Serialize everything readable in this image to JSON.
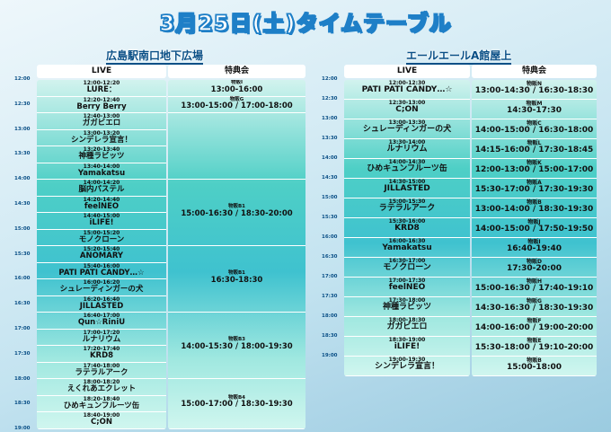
{
  "title": "3月25日(土)タイムテーブル",
  "venue1": {
    "name": "広島駅南口地下広場",
    "live_header": "LIVE",
    "bonus_header": "特典会",
    "times": [
      "12:00",
      "12:30",
      "13:00",
      "13:30",
      "14:00",
      "14:30",
      "15:00",
      "15:30",
      "16:00",
      "16:30",
      "17:00",
      "17:30",
      "18:00",
      "18:30",
      "19:00"
    ],
    "live": [
      {
        "time": "12:00-12:20",
        "name": "LURE："
      },
      {
        "time": "12:20-12:40",
        "name": "Berry Berry"
      },
      {
        "time": "12:40-13:00",
        "name": "ガガビエロ"
      },
      {
        "time": "13:00-13:20",
        "name": "シンデレラ宣言！"
      },
      {
        "time": "13:20-13:40",
        "name": "神種ラビッツ"
      },
      {
        "time": "13:40-14:00",
        "name": "Yamakatsu"
      },
      {
        "time": "14:00-14:20",
        "name": "脳内パステル"
      },
      {
        "time": "14:20-14:40",
        "name": "feelNEO"
      },
      {
        "time": "14:40-15:00",
        "name": "iLIFE!"
      },
      {
        "time": "15:00-15:20",
        "name": "モノクローン"
      },
      {
        "time": "15:20-15:40",
        "name": "ANOMARY"
      },
      {
        "time": "15:40-16:00",
        "name": "PATI PATI CANDY…☆"
      },
      {
        "time": "16:00-16:20",
        "name": "シュレーディンガーの犬"
      },
      {
        "time": "16:20-16:40",
        "name": "JILLASTED"
      },
      {
        "time": "16:40-17:00",
        "name": "Qun☆RiniU"
      },
      {
        "time": "17:00-17:20",
        "name": "ルナリウム"
      },
      {
        "time": "17:20-17:40",
        "name": "KRD8"
      },
      {
        "time": "17:40-18:00",
        "name": "ラテラルアーク"
      },
      {
        "time": "18:00-18:20",
        "name": "えくれあエクレット"
      },
      {
        "time": "18:20-18:40",
        "name": "ひめキュンフルーツ缶"
      },
      {
        "time": "18:40-19:00",
        "name": "C;ON"
      }
    ],
    "bonus": [
      {
        "booth": "物販I",
        "text": "13:00-16:00"
      },
      {
        "booth": "物販G",
        "text": "13:00-15:00 / 17:00-18:00"
      },
      {
        "booth": "",
        "text": ""
      },
      {
        "booth": "",
        "text": ""
      },
      {
        "booth": "",
        "text": ""
      },
      {
        "booth": "",
        "text": ""
      },
      {
        "booth": "物販B1",
        "text": "15:00-16:30 / 18:30-20:00"
      },
      {
        "booth": "",
        "text": ""
      },
      {
        "booth": "",
        "text": ""
      },
      {
        "booth": "",
        "text": ""
      },
      {
        "booth": "物販B1",
        "text": "16:30-18:30"
      },
      {
        "booth": "",
        "text": ""
      },
      {
        "booth": "",
        "text": ""
      },
      {
        "booth": "",
        "text": ""
      },
      {
        "booth": "物販B3",
        "text": "14:00-15:30 / 18:00-19:30"
      },
      {
        "booth": "",
        "text": ""
      },
      {
        "booth": "",
        "text": ""
      },
      {
        "booth": "",
        "text": ""
      },
      {
        "booth": "物販B4",
        "text": "15:00-17:00 / 18:30-19:30"
      },
      {
        "booth": "",
        "text": ""
      },
      {
        "booth": "",
        "text": ""
      }
    ]
  },
  "venue2": {
    "name": "エールエールA館屋上",
    "live_header": "LIVE",
    "bonus_header": "特典会",
    "times": [
      "12:00",
      "12:30",
      "13:00",
      "13:30",
      "14:00",
      "14:30",
      "15:00",
      "15:30",
      "16:00",
      "16:30",
      "17:00",
      "17:30",
      "18:00",
      "18:30",
      "19:00"
    ],
    "live": [
      {
        "time": "12:00-12:30",
        "name": "PATI PATI CANDY…☆"
      },
      {
        "time": "12:30-13:00",
        "name": "C;ON"
      },
      {
        "time": "13:00-13:30",
        "name": "シュレーディンガーの犬"
      },
      {
        "time": "13:30-14:00",
        "name": "ルナリウム"
      },
      {
        "time": "14:00-14:30",
        "name": "ひめキュンフルーツ缶"
      },
      {
        "time": "14:30-15:00",
        "name": "JILLASTED"
      },
      {
        "time": "15:00-15:30",
        "name": "ラテラルアーク"
      },
      {
        "time": "15:30-16:00",
        "name": "KRD8"
      },
      {
        "time": "16:00-16:30",
        "name": "Yamakatsu"
      },
      {
        "time": "16:30-17:00",
        "name": "モノクローン"
      },
      {
        "time": "17:00-17:30",
        "name": "feelNEO"
      },
      {
        "time": "17:30-18:00",
        "name": "神種ラビッツ"
      },
      {
        "time": "18:00-18:30",
        "name": "ガガビエロ"
      },
      {
        "time": "18:30-19:00",
        "name": "iLIFE!"
      },
      {
        "time": "19:00-19:30",
        "name": "シンデレラ宣言！"
      }
    ],
    "bonus": [
      {
        "booth": "物販N",
        "text": "13:00-14:30 / 16:30-18:30"
      },
      {
        "booth": "物販M",
        "text": "14:30-17:30"
      },
      {
        "booth": "物販C",
        "text": "14:00-15:00 / 16:30-18:00"
      },
      {
        "booth": "物販L",
        "text": "14:15-16:00 / 17:30-18:45"
      },
      {
        "booth": "物販K",
        "text": "12:00-13:00 / 15:00-17:00"
      },
      {
        "booth": "物販A",
        "text": "15:30-17:00 / 17:30-19:30"
      },
      {
        "booth": "物販B",
        "text": "13:00-14:00 / 18:30-19:30"
      },
      {
        "booth": "物販J",
        "text": "14:00-15:00 / 17:50-19:50"
      },
      {
        "booth": "物販I",
        "text": "16:40-19:40"
      },
      {
        "booth": "物販D",
        "text": "17:30-20:00"
      },
      {
        "booth": "物販H",
        "text": "15:00-16:30 / 17:40-19:10"
      },
      {
        "booth": "物販G",
        "text": "14:30-16:30 / 18:30-19:30"
      },
      {
        "booth": "物販F",
        "text": "14:00-16:00 / 19:00-20:00"
      },
      {
        "booth": "物販E",
        "text": "15:30-18:00 / 19:10-20:00"
      },
      {
        "booth": "物販B",
        "text": "15:00-18:00"
      }
    ]
  }
}
